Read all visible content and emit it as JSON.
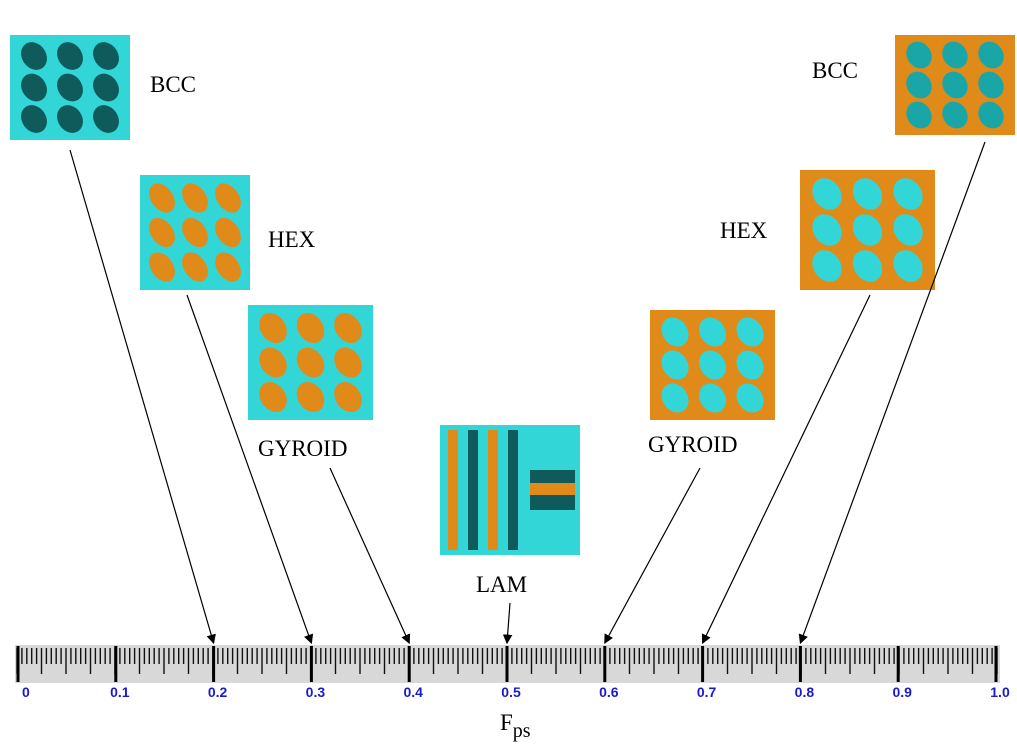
{
  "phases": [
    {
      "label": "BCC",
      "f": 0.2
    },
    {
      "label": "HEX",
      "f": 0.3
    },
    {
      "label": "GYROID",
      "f": 0.4
    },
    {
      "label": "LAM",
      "f": 0.5
    },
    {
      "label": "GYROID",
      "f": 0.6
    },
    {
      "label": "HEX",
      "f": 0.7
    },
    {
      "label": "BCC",
      "f": 0.8
    }
  ],
  "axis": {
    "label": "F",
    "label_sub": "ps",
    "ticks": [
      0,
      0.1,
      0.2,
      0.3,
      0.4,
      0.5,
      0.6,
      0.7,
      0.8,
      0.9,
      {
        "value": 1,
        "label": "1.0"
      }
    ]
  }
}
